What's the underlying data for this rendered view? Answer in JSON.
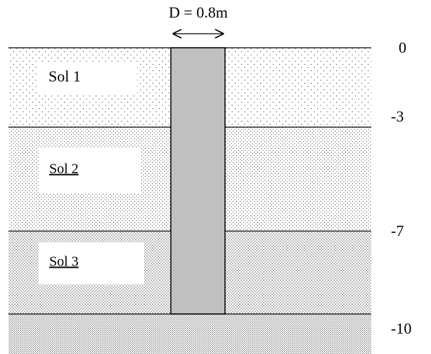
{
  "diameter_label": "D = 0.8m",
  "layers": [
    {
      "label": "Sol 1"
    },
    {
      "label": "Sol 2"
    },
    {
      "label": "Sol 3"
    }
  ],
  "depths": [
    0,
    -3,
    -7,
    -10
  ]
}
